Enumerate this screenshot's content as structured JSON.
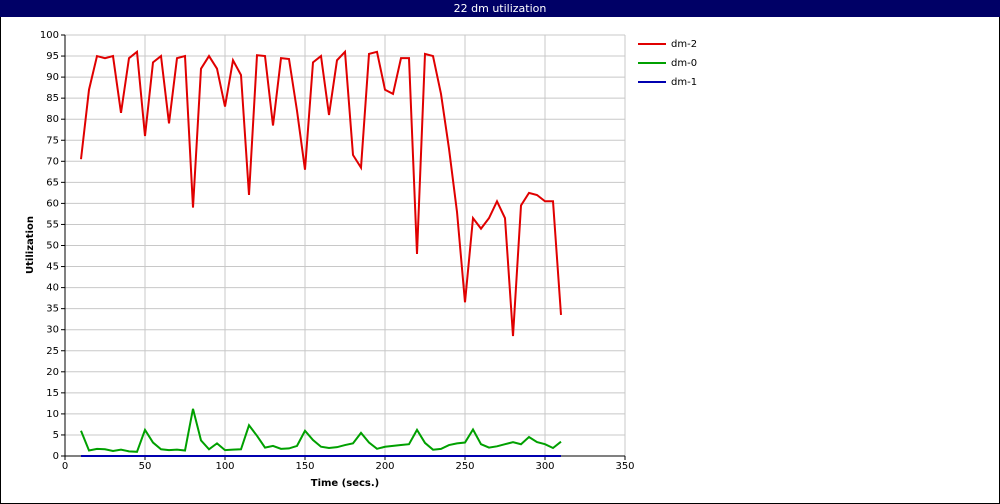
{
  "chart_data": {
    "type": "line",
    "title": "22 dm utilization",
    "x_label": "Time (secs.)",
    "y_label": "Utilization",
    "x": [
      10,
      15,
      20,
      25,
      30,
      35,
      40,
      45,
      50,
      55,
      60,
      65,
      70,
      75,
      80,
      85,
      90,
      95,
      100,
      105,
      110,
      115,
      120,
      125,
      130,
      135,
      140,
      145,
      150,
      155,
      160,
      165,
      170,
      175,
      180,
      185,
      190,
      195,
      200,
      205,
      210,
      215,
      220,
      225,
      230,
      235,
      240,
      245,
      250,
      255,
      260,
      265,
      270,
      275,
      280,
      285,
      290,
      295,
      300,
      305,
      310
    ],
    "series": [
      {
        "name": "dm-2",
        "color": "#e00000",
        "values": [
          70.5,
          87,
          95,
          94.5,
          95,
          81.5,
          94.5,
          96,
          76,
          93.5,
          95,
          79,
          94.5,
          95,
          59,
          92,
          95,
          92,
          83,
          94,
          90.5,
          62,
          95.2,
          95,
          78.5,
          94.5,
          94.3,
          82,
          68,
          93.5,
          95,
          81,
          94,
          96,
          71.5,
          68.5,
          95.5,
          96,
          87,
          86,
          94.5,
          94.5,
          48,
          95.5,
          95,
          86,
          73,
          58,
          36.5,
          56.5,
          54,
          56.5,
          60.5,
          56.5,
          28.5,
          59.5,
          62.5,
          62,
          60.5,
          60.5,
          33.5
        ]
      },
      {
        "name": "dm-0",
        "color": "#00a000",
        "values": [
          6,
          1.3,
          1.7,
          1.6,
          1.2,
          1.5,
          1.1,
          1.0,
          6.2,
          3.2,
          1.6,
          1.4,
          1.5,
          1.3,
          11.2,
          3.7,
          1.6,
          3,
          1.4,
          1.5,
          1.6,
          7.3,
          4.8,
          2.0,
          2.4,
          1.7,
          1.8,
          2.4,
          6,
          3.8,
          2.2,
          1.9,
          2.1,
          2.6,
          3,
          5.5,
          3.2,
          1.7,
          2.2,
          2.4,
          2.6,
          2.8,
          6.2,
          3.1,
          1.5,
          1.7,
          2.6,
          3.0,
          3.2,
          6.3,
          2.8,
          2.0,
          2.3,
          2.8,
          3.3,
          2.8,
          4.5,
          3.3,
          2.8,
          1.9,
          3.4
        ]
      },
      {
        "name": "dm-1",
        "color": "#0000b0",
        "values": [
          0,
          0,
          0,
          0,
          0,
          0,
          0,
          0,
          0,
          0,
          0,
          0,
          0,
          0,
          0,
          0,
          0,
          0,
          0,
          0,
          0,
          0,
          0,
          0,
          0,
          0,
          0,
          0,
          0,
          0,
          0,
          0,
          0,
          0,
          0,
          0,
          0,
          0,
          0,
          0,
          0,
          0,
          0,
          0,
          0,
          0,
          0,
          0,
          0,
          0,
          0,
          0,
          0,
          0,
          0,
          0,
          0,
          0,
          0,
          0,
          0
        ]
      }
    ],
    "xlim": [
      0,
      350
    ],
    "xticks": [
      0,
      50,
      100,
      150,
      200,
      250,
      300,
      350
    ],
    "ylim": [
      0,
      100
    ],
    "yticks": [
      0,
      5,
      10,
      15,
      20,
      25,
      30,
      35,
      40,
      45,
      50,
      55,
      60,
      65,
      70,
      75,
      80,
      85,
      90,
      95,
      100
    ],
    "grid": true,
    "legend": "right"
  }
}
